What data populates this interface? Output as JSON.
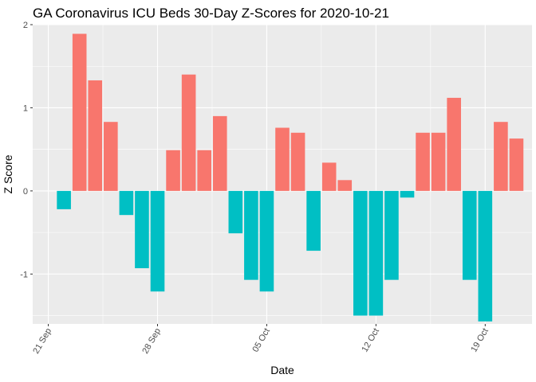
{
  "chart_data": {
    "type": "bar",
    "title": "GA Coronavirus ICU Beds 30-Day Z-Scores for 2020-10-21",
    "xlabel": "Date",
    "ylabel": "Z Score",
    "x_tick_labels": [
      "21 Sep",
      "28 Sep",
      "05 Oct",
      "12 Oct",
      "19 Oct"
    ],
    "x_tick_dates": [
      "2020-09-21",
      "2020-09-28",
      "2020-10-05",
      "2020-10-12",
      "2020-10-19"
    ],
    "y_ticks": [
      -1,
      0,
      1,
      2
    ],
    "ylim": [
      -1.6,
      2.0
    ],
    "xlim": [
      "2020-09-20",
      "2020-10-22"
    ],
    "grid": true,
    "legend": "none",
    "colors": {
      "positive": "#F8766D",
      "negative": "#00BFC4",
      "panel": "#EBEBEB",
      "grid": "#FFFFFF"
    },
    "dates": [
      "2020-09-22",
      "2020-09-23",
      "2020-09-24",
      "2020-09-25",
      "2020-09-26",
      "2020-09-27",
      "2020-09-28",
      "2020-09-29",
      "2020-09-30",
      "2020-10-01",
      "2020-10-02",
      "2020-10-03",
      "2020-10-04",
      "2020-10-05",
      "2020-10-06",
      "2020-10-07",
      "2020-10-08",
      "2020-10-09",
      "2020-10-10",
      "2020-10-11",
      "2020-10-12",
      "2020-10-13",
      "2020-10-14",
      "2020-10-15",
      "2020-10-16",
      "2020-10-17",
      "2020-10-18",
      "2020-10-19",
      "2020-10-20",
      "2020-10-21"
    ],
    "values": [
      -0.22,
      1.89,
      1.33,
      0.83,
      -0.29,
      -0.93,
      -1.21,
      0.49,
      1.4,
      0.49,
      0.9,
      -0.51,
      -1.07,
      -1.21,
      0.76,
      0.7,
      -0.72,
      0.34,
      0.13,
      -1.5,
      -1.5,
      -1.07,
      -0.08,
      0.7,
      0.7,
      1.12,
      -1.07,
      -1.57,
      0.83,
      0.63
    ]
  }
}
